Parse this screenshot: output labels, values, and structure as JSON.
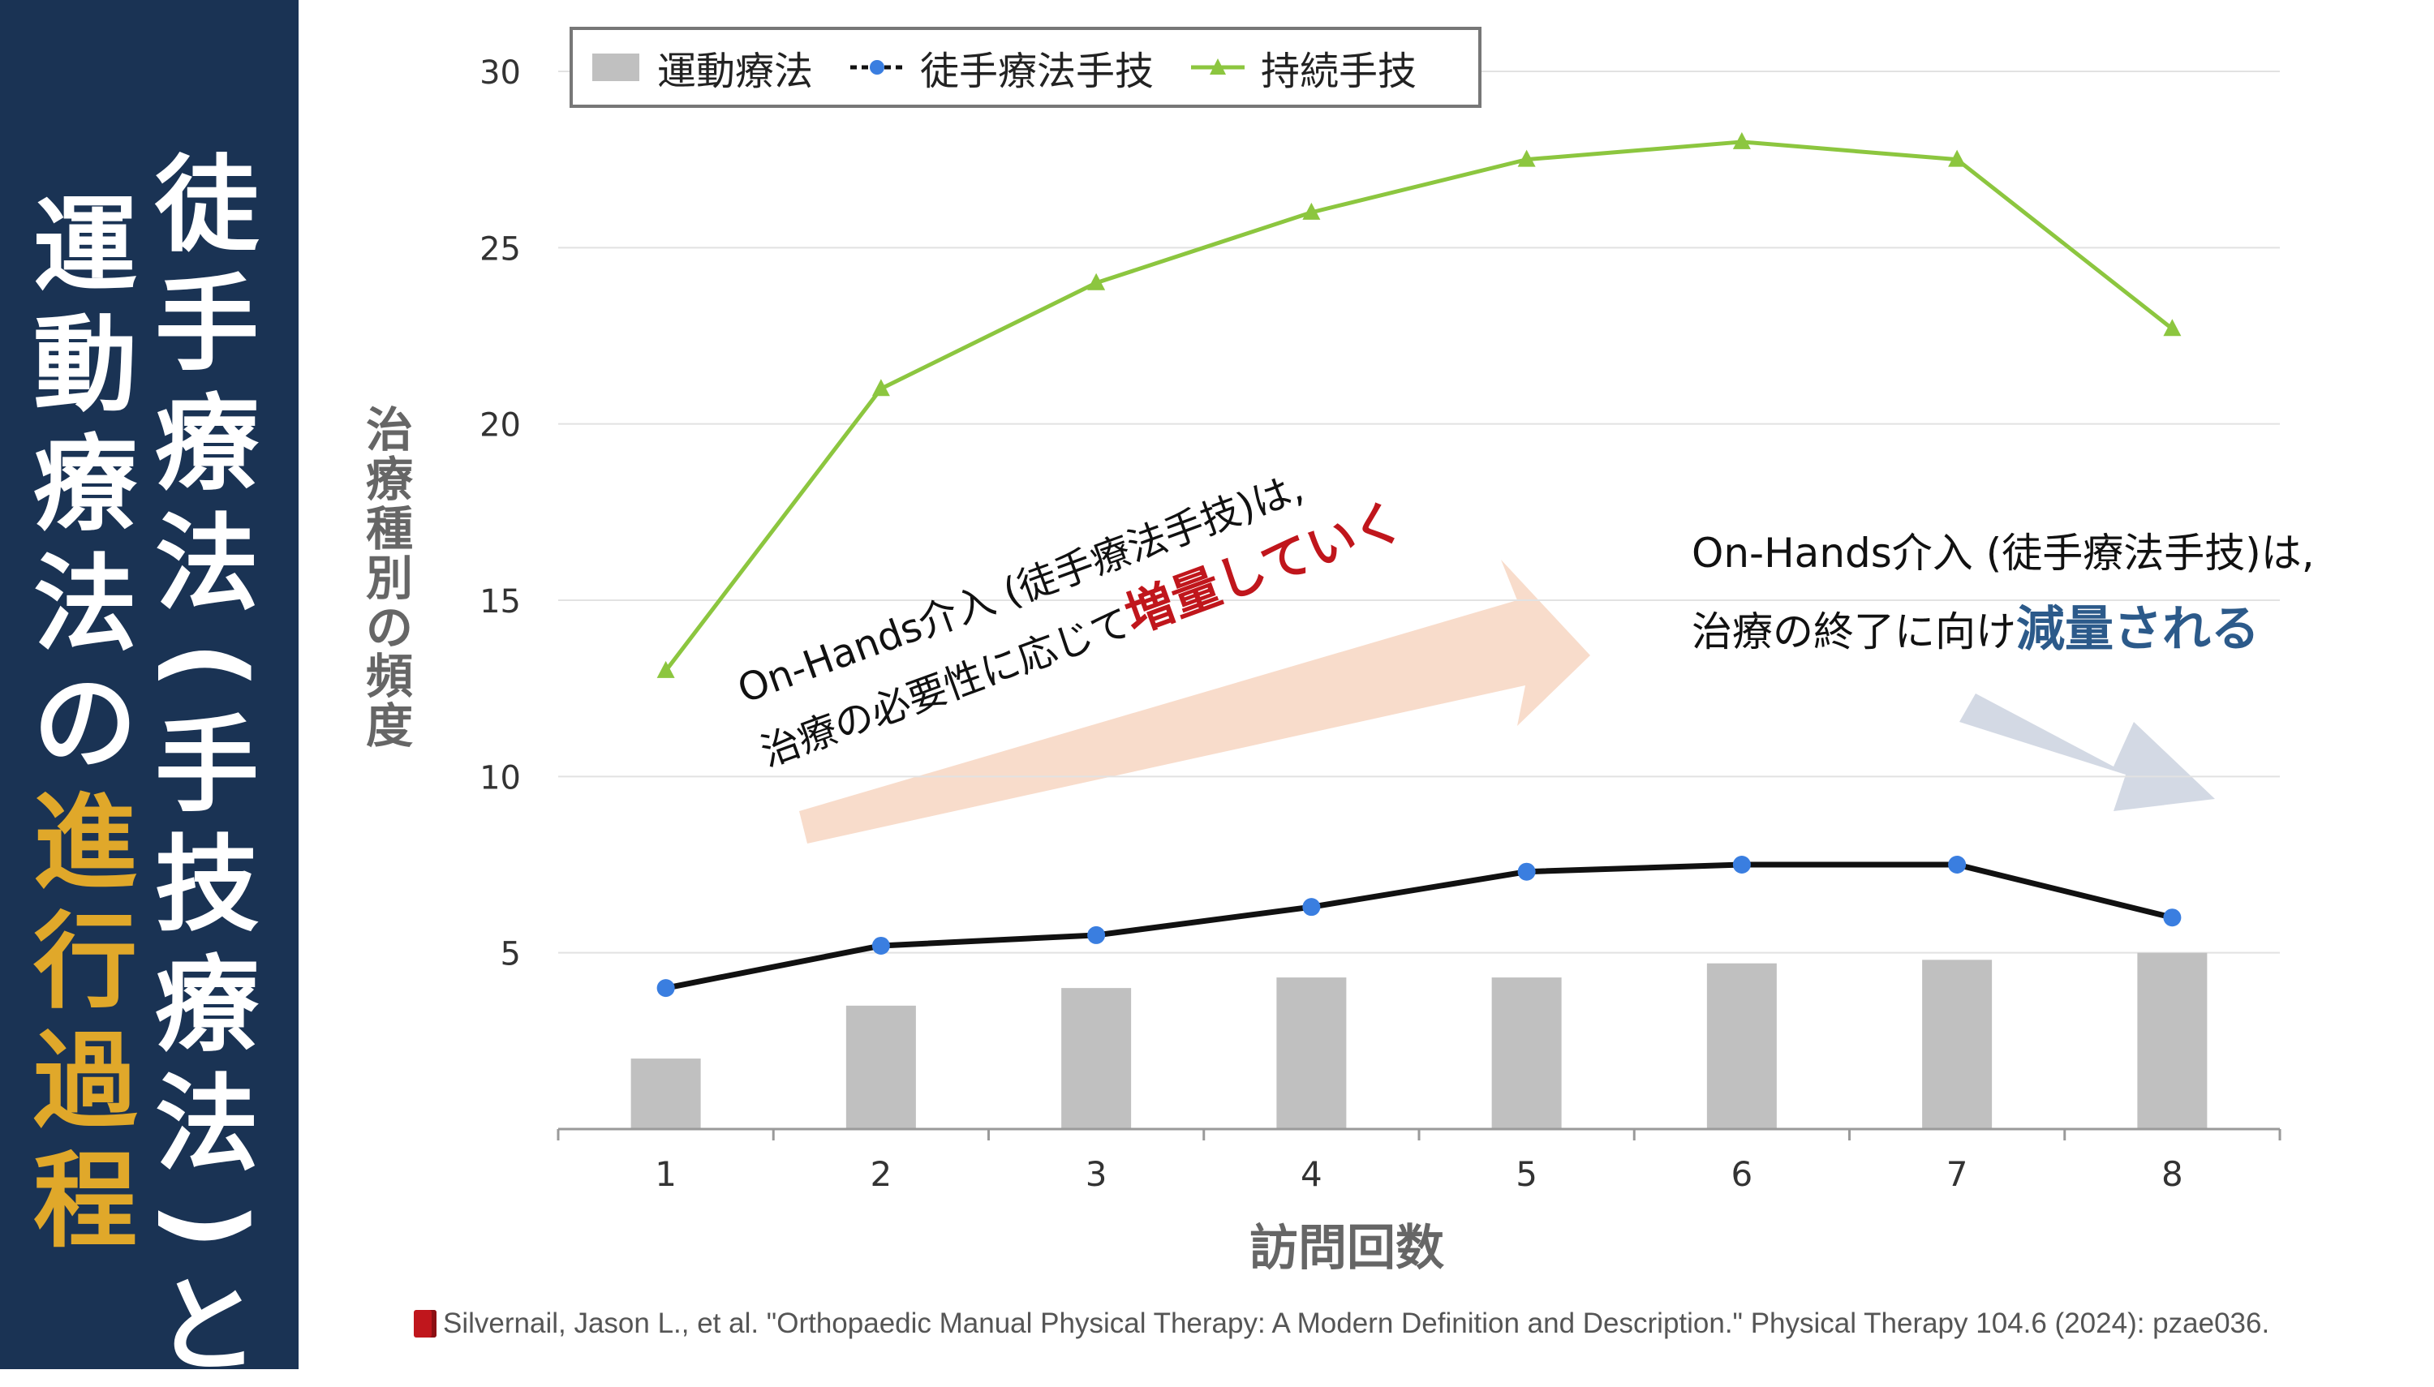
{
  "sidebar": {
    "title_line1_chars": [
      "徒",
      "手",
      "療",
      "法",
      "(",
      "手",
      "技",
      "療",
      "法",
      ")",
      "と"
    ],
    "title_line2_chars": [
      "運",
      "動",
      "療",
      "法",
      "の"
    ],
    "title_line2_highlight_chars": [
      "進",
      "行",
      "過",
      "程"
    ],
    "background_color": "#1a3354",
    "highlight_color": "#e0a82a"
  },
  "chart_data": {
    "type": "bar+line",
    "categories": [
      "1",
      "2",
      "3",
      "4",
      "5",
      "6",
      "7",
      "8"
    ],
    "series": [
      {
        "name": "運動療法",
        "kind": "bar",
        "color": "#c0c0c0",
        "values": [
          2.0,
          3.5,
          4.0,
          4.3,
          4.3,
          4.7,
          4.8,
          5.0
        ]
      },
      {
        "name": "徒手療法手技",
        "kind": "line",
        "color": "#111111",
        "marker": "circle",
        "marker_color": "#3a7ee0",
        "values": [
          4.0,
          5.2,
          5.5,
          6.3,
          7.3,
          7.5,
          7.5,
          6.0
        ]
      },
      {
        "name": "持続手技",
        "kind": "line",
        "color": "#8cc63f",
        "marker": "triangle",
        "values": [
          13.0,
          21.0,
          24.0,
          26.0,
          27.5,
          28.0,
          27.5,
          22.7
        ]
      }
    ],
    "y_ticks": [
      "5",
      "10",
      "15",
      "20",
      "25",
      "30"
    ],
    "ylim": [
      0,
      30
    ],
    "ylabel_chars": [
      "治",
      "療",
      "種",
      "別",
      "の",
      "頻",
      "度"
    ],
    "xlabel": "訪問回数",
    "grid": true,
    "legend_position": "top"
  },
  "annotations": {
    "left_line1": "On-Hands介入 (徒手療法手技)は,",
    "left_line2_prefix": "治療の必要性に応じて",
    "left_line2_emphasis": "増量していく",
    "right_line1": "On-Hands介入 (徒手療法手技)は,",
    "right_line2_prefix": "治療の終了に向け",
    "right_line2_emphasis": "減量される",
    "left_arrow_color": "#f8dccb",
    "right_arrow_color": "#d3d9e4"
  },
  "citation": {
    "text": "Silvernail, Jason L., et al. \"Orthopaedic Manual Physical Therapy: A Modern Definition and Description.\" Physical Therapy 104.6 (2024): pzae036.",
    "icon": "book-icon"
  }
}
